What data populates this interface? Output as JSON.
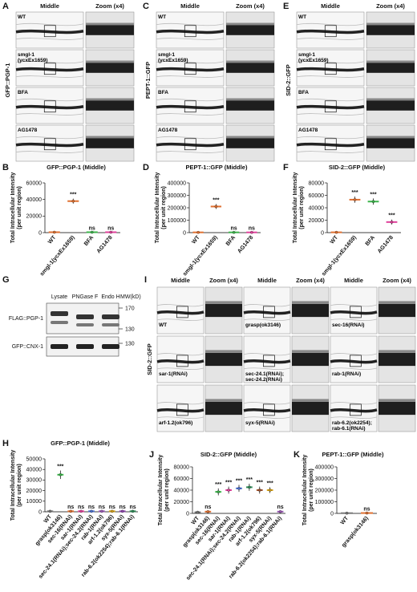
{
  "image_panels": [
    {
      "label": "A",
      "marker": "GFP::PGP-1",
      "headers": [
        "Middle",
        "Zoom (x4)"
      ],
      "rows": [
        [
          "WT"
        ],
        [
          "smgl-1",
          "(ycxEx1659)"
        ],
        [
          "BFA"
        ],
        [
          "AG1478"
        ]
      ]
    },
    {
      "label": "C",
      "marker": "PEPT-1::GFP",
      "headers": [
        "Middle",
        "Zoom (x4)"
      ],
      "rows": [
        [
          "WT"
        ],
        [
          "smgl-1",
          "(ycxEx1659)"
        ],
        [
          "BFA"
        ],
        [
          "AG1478"
        ]
      ]
    },
    {
      "label": "E",
      "marker": "SID-2::GFP",
      "headers": [
        "Middle",
        "Zoom (x4)"
      ],
      "rows": [
        [
          "WT"
        ],
        [
          "smgl-1",
          "(ycxEx1659)"
        ],
        [
          "BFA"
        ],
        [
          "AG1478"
        ]
      ]
    },
    {
      "label": "I",
      "marker": "SID-2::GFP",
      "headers": [
        "Middle",
        "Zoom (x4)"
      ],
      "rows": [
        [
          "WT"
        ],
        [
          "grasp(ok3146)"
        ],
        [
          "sec-16(RNAi)"
        ],
        [
          "sar-1(RNAi)"
        ],
        [
          "sec-24.1(RNAi);",
          "sec-24.2(RNAi)"
        ],
        [
          "rab-1(RNAi)"
        ],
        [
          "arf-1.2(ok796)"
        ],
        [
          "syx-5(RNAi)"
        ],
        [
          "rab-6.2(ok2254);",
          "rab-6.1(RNAi)"
        ]
      ]
    }
  ],
  "blot": {
    "label": "G",
    "lanes": [
      "Lysate",
      "PNGase F",
      "Endo H"
    ],
    "mw_label": "MW(kD)",
    "rows": [
      {
        "name": "FLAG::PGP-1",
        "markers": [
          170,
          130
        ]
      },
      {
        "name": "GFP::CNX-1",
        "markers": [
          130
        ]
      }
    ]
  },
  "chart_data": [
    {
      "type": "dot",
      "label": "B",
      "title": "GFP::PGP-1 (Middle)",
      "ylabel": [
        "Total Intracellular Intensity",
        "(per unit region)"
      ],
      "categories": [
        "WT",
        "smgl-1(ycxEx1659)",
        "BFA",
        "AG1478"
      ],
      "values": [
        500,
        38000,
        500,
        500
      ],
      "errors": [
        200,
        3000,
        200,
        200
      ],
      "colors": [
        "#e07030",
        "#e07030",
        "#3cb44b",
        "#e0409a"
      ],
      "annotations": [
        null,
        "***",
        "ns",
        "ns"
      ],
      "ylim": [
        0,
        60000
      ],
      "yticks": [
        0,
        20000,
        40000,
        60000
      ]
    },
    {
      "type": "dot",
      "label": "D",
      "title": "PEPT-1::GFP (Middle)",
      "ylabel": [
        "Total Intracellular Intensity",
        "(per unit region)"
      ],
      "categories": [
        "WT",
        "smgl-1(ycxEx1659)",
        "BFA",
        "AG1478"
      ],
      "values": [
        2000,
        210000,
        2000,
        2000
      ],
      "errors": [
        1000,
        20000,
        1000,
        1000
      ],
      "colors": [
        "#e07030",
        "#e07030",
        "#3cb44b",
        "#e0409a"
      ],
      "annotations": [
        null,
        "***",
        "ns",
        "ns"
      ],
      "ylim": [
        0,
        400000
      ],
      "yticks": [
        0,
        100000,
        200000,
        300000,
        400000
      ]
    },
    {
      "type": "dot",
      "label": "F",
      "title": "SID-2::GFP (Middle)",
      "ylabel": [
        "Total Intracellular Intensity",
        "(per unit region)"
      ],
      "categories": [
        "WT",
        "smgl-1(ycxEx1659)",
        "BFA",
        "AG1478"
      ],
      "values": [
        500,
        53000,
        50000,
        17000
      ],
      "errors": [
        200,
        5000,
        5000,
        4000
      ],
      "colors": [
        "#e07030",
        "#e07030",
        "#3cb44b",
        "#e0409a"
      ],
      "annotations": [
        null,
        "***",
        "***",
        "***"
      ],
      "ylim": [
        0,
        80000
      ],
      "yticks": [
        0,
        20000,
        40000,
        60000,
        80000
      ]
    },
    {
      "type": "dot",
      "label": "H",
      "title": "GFP::PGP-1 (Middle)",
      "ylabel": [
        "Total Intracellular Intensity",
        "(per unit region)"
      ],
      "categories": [
        "WT",
        "grasp(ok3146)",
        "sec-16(RNAi)",
        "sar-1(RNAi)",
        "sec-24.1(RNAi);sec-24.2(RNAi)",
        "rab-1(RNAi)",
        "arf-1.2(ok796)",
        "syx-5(RNAi)",
        "rab-6.2(ok2254);rab-6.1(RNAi)"
      ],
      "values": [
        500,
        35000,
        500,
        500,
        500,
        500,
        500,
        500,
        500
      ],
      "errors": [
        200,
        4000,
        200,
        200,
        200,
        200,
        200,
        200,
        200
      ],
      "colors": [
        "#777777",
        "#3cb44b",
        "#e07030",
        "#e0409a",
        "#4a6fd0",
        "#9b59b6",
        "#d4a017",
        "#8e44ad",
        "#2e8b57"
      ],
      "annotations": [
        null,
        "***",
        "ns",
        "ns",
        "ns",
        "ns",
        "ns",
        "ns",
        "ns"
      ],
      "ylim": [
        0,
        50000
      ],
      "yticks": [
        0,
        10000,
        20000,
        30000,
        40000,
        50000
      ]
    },
    {
      "type": "dot",
      "label": "J",
      "title": "SID-2::GFP (Middle)",
      "ylabel": [
        "Total Intracellular Intensity",
        "(per unit region)"
      ],
      "categories": [
        "WT",
        "grasp(ok3146)",
        "sec-16(RNAi)",
        "sar-1(RNAi)",
        "sec-24.1(RNAi);sec-24.2(RNAi)",
        "rab-1(RNAi)",
        "arf-1.2(ok796)",
        "syx-5(RNAi)",
        "rab-6.2(ok2254);rab-6.1(RNAi)"
      ],
      "values": [
        2000,
        3000,
        37000,
        40000,
        43000,
        45000,
        40000,
        40000,
        3000
      ],
      "errors": [
        800,
        1000,
        6000,
        6000,
        6000,
        6000,
        6000,
        5000,
        1000
      ],
      "colors": [
        "#777777",
        "#e07030",
        "#3cb44b",
        "#e0409a",
        "#4a6fd0",
        "#2e8b57",
        "#a0522d",
        "#d4a017",
        "#9b59b6"
      ],
      "annotations": [
        null,
        "ns",
        "***",
        "***",
        "***",
        "***",
        "***",
        "***",
        "ns"
      ],
      "ylim": [
        0,
        80000
      ],
      "yticks": [
        0,
        20000,
        40000,
        60000,
        80000
      ]
    },
    {
      "type": "dot",
      "label": "K",
      "title": "PEPT-1::GFP (Middle)",
      "ylabel": [
        "Total Intracellular Intensity",
        "(per unit region)"
      ],
      "categories": [
        "WT",
        "grasp(ok3146)"
      ],
      "values": [
        2000,
        3000
      ],
      "errors": [
        1000,
        1000
      ],
      "colors": [
        "#777777",
        "#e07030"
      ],
      "annotations": [
        null,
        "ns"
      ],
      "ylim": [
        0,
        400000
      ],
      "yticks": [
        0,
        100000,
        200000,
        300000,
        400000
      ]
    }
  ]
}
